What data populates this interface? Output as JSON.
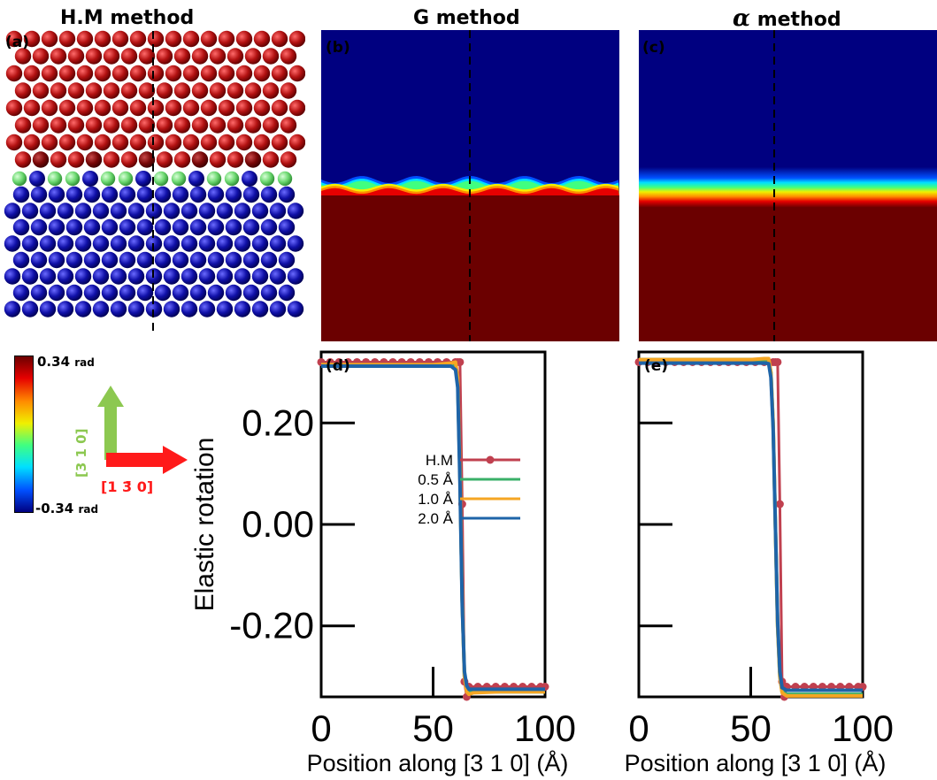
{
  "titles": {
    "a": "H.M method",
    "b": "G method",
    "c": "method",
    "c_symbol": "α"
  },
  "panel_labels": {
    "a": "(a)",
    "b": "(b)",
    "c": "(c)",
    "d": "(d)",
    "e": "(e)"
  },
  "colorbar": {
    "max_value": "0.34",
    "min_value": "-0.34",
    "unit": "rad",
    "stops": [
      "#6b0000",
      "#e60000",
      "#ff8c00",
      "#f0f000",
      "#40ff80",
      "#00e0ff",
      "#0050ff",
      "#000080"
    ]
  },
  "axes_arrows": {
    "vertical_label": "[3 1 0]",
    "vertical_color": "#8cc850",
    "horizontal_label": "[1 3̄ 0]",
    "horizontal_color": "#ff1a1a"
  },
  "atoms": {
    "top_color": "#b01010",
    "bottom_color": "#1010a8",
    "interface_color": "#6cd870"
  },
  "chart_data": [
    {
      "type": "line",
      "panel": "d",
      "xlabel": "Position along [3 1 0] (Å)",
      "ylabel": "Elastic rotation",
      "xlim": [
        0,
        100
      ],
      "ylim": [
        -0.34,
        0.34
      ],
      "x_ticks": [
        "0",
        "50",
        "100"
      ],
      "y_ticks": [
        "0.20",
        "0.00",
        "-0.20"
      ],
      "y_tick_values": [
        0.2,
        0.0,
        -0.2
      ],
      "x_tick_values": [
        0,
        50,
        100
      ],
      "legend": {
        "position": "center-right"
      },
      "series": [
        {
          "name": "H.M",
          "color": "#c0404f",
          "markers": true,
          "x": [
            0,
            4,
            8,
            12,
            16,
            20,
            24,
            28,
            32,
            36,
            40,
            44,
            48,
            52,
            56,
            60,
            61,
            62,
            63,
            64,
            65,
            66,
            70,
            74,
            78,
            82,
            86,
            90,
            94,
            98,
            100
          ],
          "y": [
            0.32,
            0.32,
            0.32,
            0.32,
            0.32,
            0.32,
            0.32,
            0.32,
            0.32,
            0.32,
            0.32,
            0.32,
            0.32,
            0.32,
            0.32,
            0.32,
            0.32,
            0.32,
            0.04,
            -0.31,
            -0.34,
            -0.32,
            -0.32,
            -0.32,
            -0.32,
            -0.32,
            -0.32,
            -0.32,
            -0.32,
            -0.32,
            -0.32
          ]
        },
        {
          "name": "0.5 Å",
          "color": "#3ab068",
          "markers": false,
          "x": [
            0,
            50,
            58,
            60,
            61,
            62,
            63,
            64,
            65,
            66,
            68,
            80,
            100
          ],
          "y": [
            0.315,
            0.315,
            0.315,
            0.31,
            0.28,
            0.1,
            -0.15,
            -0.3,
            -0.325,
            -0.33,
            -0.33,
            -0.33,
            -0.33
          ]
        },
        {
          "name": "1.0 Å",
          "color": "#f5a623",
          "markers": false,
          "x": [
            0,
            50,
            58,
            60,
            61,
            62,
            63,
            64,
            65,
            66,
            68,
            80,
            100
          ],
          "y": [
            0.315,
            0.315,
            0.318,
            0.32,
            0.29,
            0.1,
            -0.15,
            -0.3,
            -0.33,
            -0.335,
            -0.332,
            -0.33,
            -0.33
          ]
        },
        {
          "name": "2.0 Å",
          "color": "#1e64a8",
          "markers": false,
          "x": [
            0,
            50,
            58,
            60,
            61,
            62,
            63,
            64,
            65,
            66,
            68,
            80,
            100
          ],
          "y": [
            0.312,
            0.312,
            0.312,
            0.305,
            0.27,
            0.08,
            -0.16,
            -0.29,
            -0.318,
            -0.325,
            -0.325,
            -0.325,
            -0.325
          ]
        }
      ]
    },
    {
      "type": "line",
      "panel": "e",
      "xlabel": "Position along [3 1 0] (Å)",
      "ylabel": "",
      "xlim": [
        0,
        100
      ],
      "ylim": [
        -0.34,
        0.34
      ],
      "x_ticks": [
        "0",
        "50",
        "100"
      ],
      "x_tick_values": [
        0,
        50,
        100
      ],
      "y_tick_values": [
        0.2,
        0.0,
        -0.2
      ],
      "series": [
        {
          "name": "H.M",
          "color": "#c0404f",
          "markers": true,
          "x": [
            0,
            4,
            8,
            12,
            16,
            20,
            24,
            28,
            32,
            36,
            40,
            44,
            48,
            52,
            56,
            60,
            61,
            62,
            63,
            64,
            65,
            66,
            70,
            74,
            78,
            82,
            86,
            90,
            94,
            98,
            100
          ],
          "y": [
            0.32,
            0.32,
            0.32,
            0.32,
            0.32,
            0.32,
            0.32,
            0.32,
            0.32,
            0.32,
            0.32,
            0.32,
            0.32,
            0.32,
            0.32,
            0.32,
            0.32,
            0.32,
            0.04,
            -0.31,
            -0.34,
            -0.32,
            -0.32,
            -0.32,
            -0.32,
            -0.32,
            -0.32,
            -0.32,
            -0.32,
            -0.32,
            -0.32
          ]
        },
        {
          "name": "0.5 Å",
          "color": "#3ab068",
          "markers": false,
          "x": [
            0,
            50,
            56,
            58,
            59,
            60,
            61,
            62,
            63,
            64,
            66,
            80,
            100
          ],
          "y": [
            0.325,
            0.325,
            0.325,
            0.325,
            0.3,
            0.2,
            0.0,
            -0.2,
            -0.3,
            -0.33,
            -0.335,
            -0.335,
            -0.335
          ]
        },
        {
          "name": "1.0 Å",
          "color": "#f5a623",
          "markers": false,
          "x": [
            0,
            50,
            56,
            58,
            59,
            60,
            61,
            62,
            63,
            64,
            66,
            80,
            100
          ],
          "y": [
            0.325,
            0.325,
            0.327,
            0.327,
            0.3,
            0.2,
            0.0,
            -0.2,
            -0.3,
            -0.332,
            -0.338,
            -0.338,
            -0.338
          ]
        },
        {
          "name": "2.0 Å",
          "color": "#1e64a8",
          "markers": false,
          "x": [
            0,
            50,
            56,
            58,
            59,
            60,
            61,
            62,
            63,
            64,
            66,
            80,
            100
          ],
          "y": [
            0.318,
            0.318,
            0.318,
            0.317,
            0.29,
            0.19,
            0.0,
            -0.19,
            -0.29,
            -0.322,
            -0.327,
            -0.327,
            -0.327
          ]
        }
      ]
    }
  ]
}
